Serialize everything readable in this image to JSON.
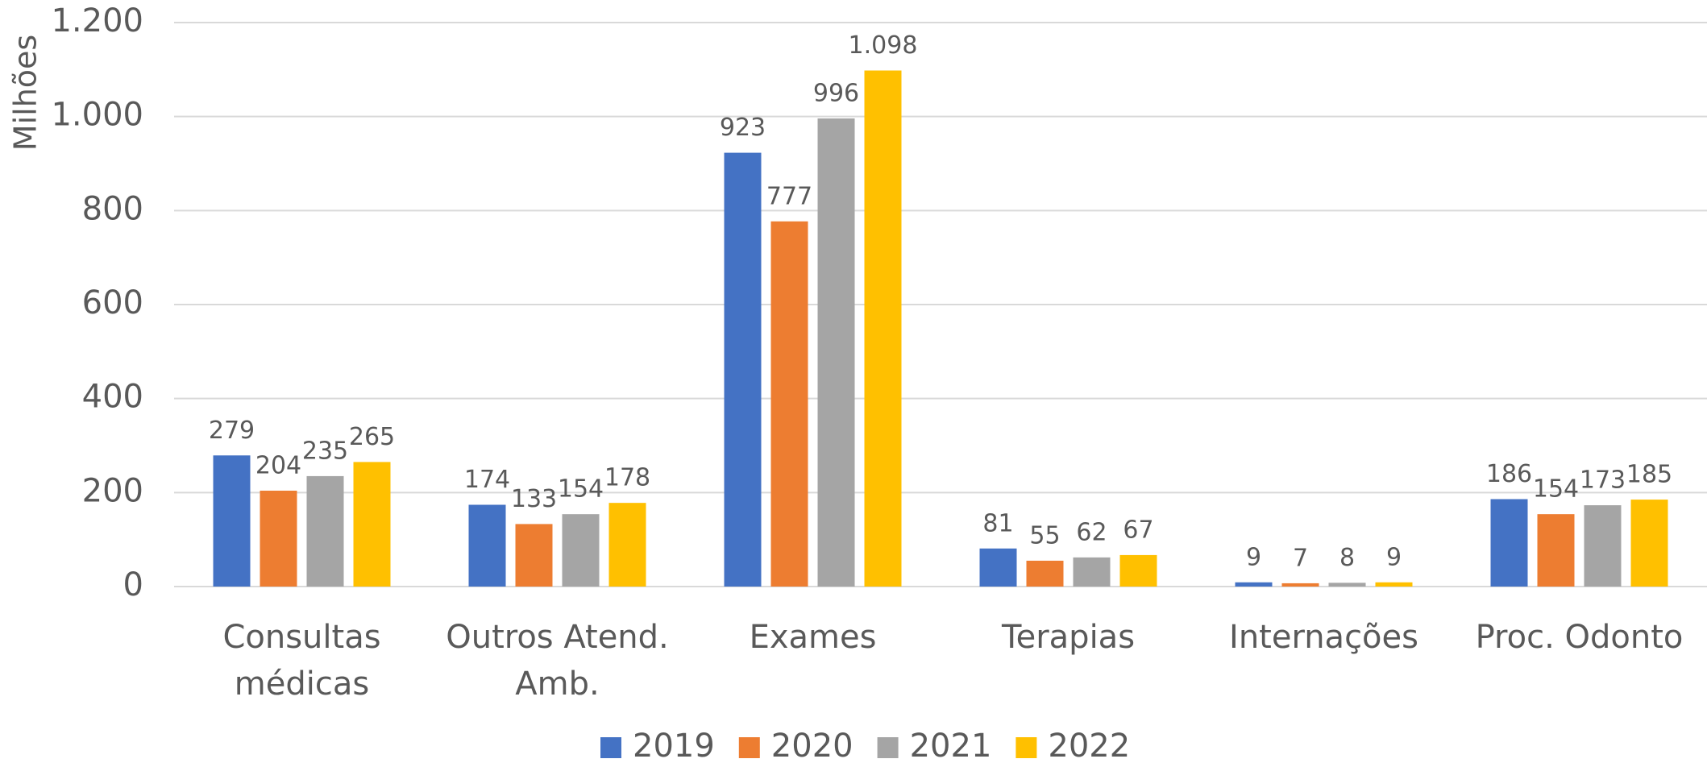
{
  "chart_data": {
    "type": "bar",
    "y_label": "Milhões",
    "categories": [
      "Consultas médicas",
      "Outros Atend. Amb.",
      "Exames",
      "Terapias",
      "Internações",
      "Proc. Odonto"
    ],
    "series": [
      {
        "name": "2019",
        "color": "#4472c4",
        "values": [
          279,
          174,
          923,
          81,
          9,
          186
        ]
      },
      {
        "name": "2020",
        "color": "#ed7d31",
        "values": [
          204,
          133,
          777,
          55,
          7,
          154
        ]
      },
      {
        "name": "2021",
        "color": "#a5a5a5",
        "values": [
          235,
          154,
          996,
          62,
          8,
          173
        ]
      },
      {
        "name": "2022",
        "color": "#ffc000",
        "values": [
          265,
          178,
          1098,
          67,
          9,
          185
        ],
        "value_labels": [
          "265",
          "178",
          "1.098",
          "67",
          "9",
          "185"
        ]
      }
    ],
    "ylim": [
      0,
      1200
    ],
    "yticks": [
      0,
      200,
      400,
      600,
      800,
      {
        "value": 1000,
        "label": "1.000"
      },
      {
        "value": 1200,
        "label": "1.200"
      }
    ],
    "grid": true
  }
}
